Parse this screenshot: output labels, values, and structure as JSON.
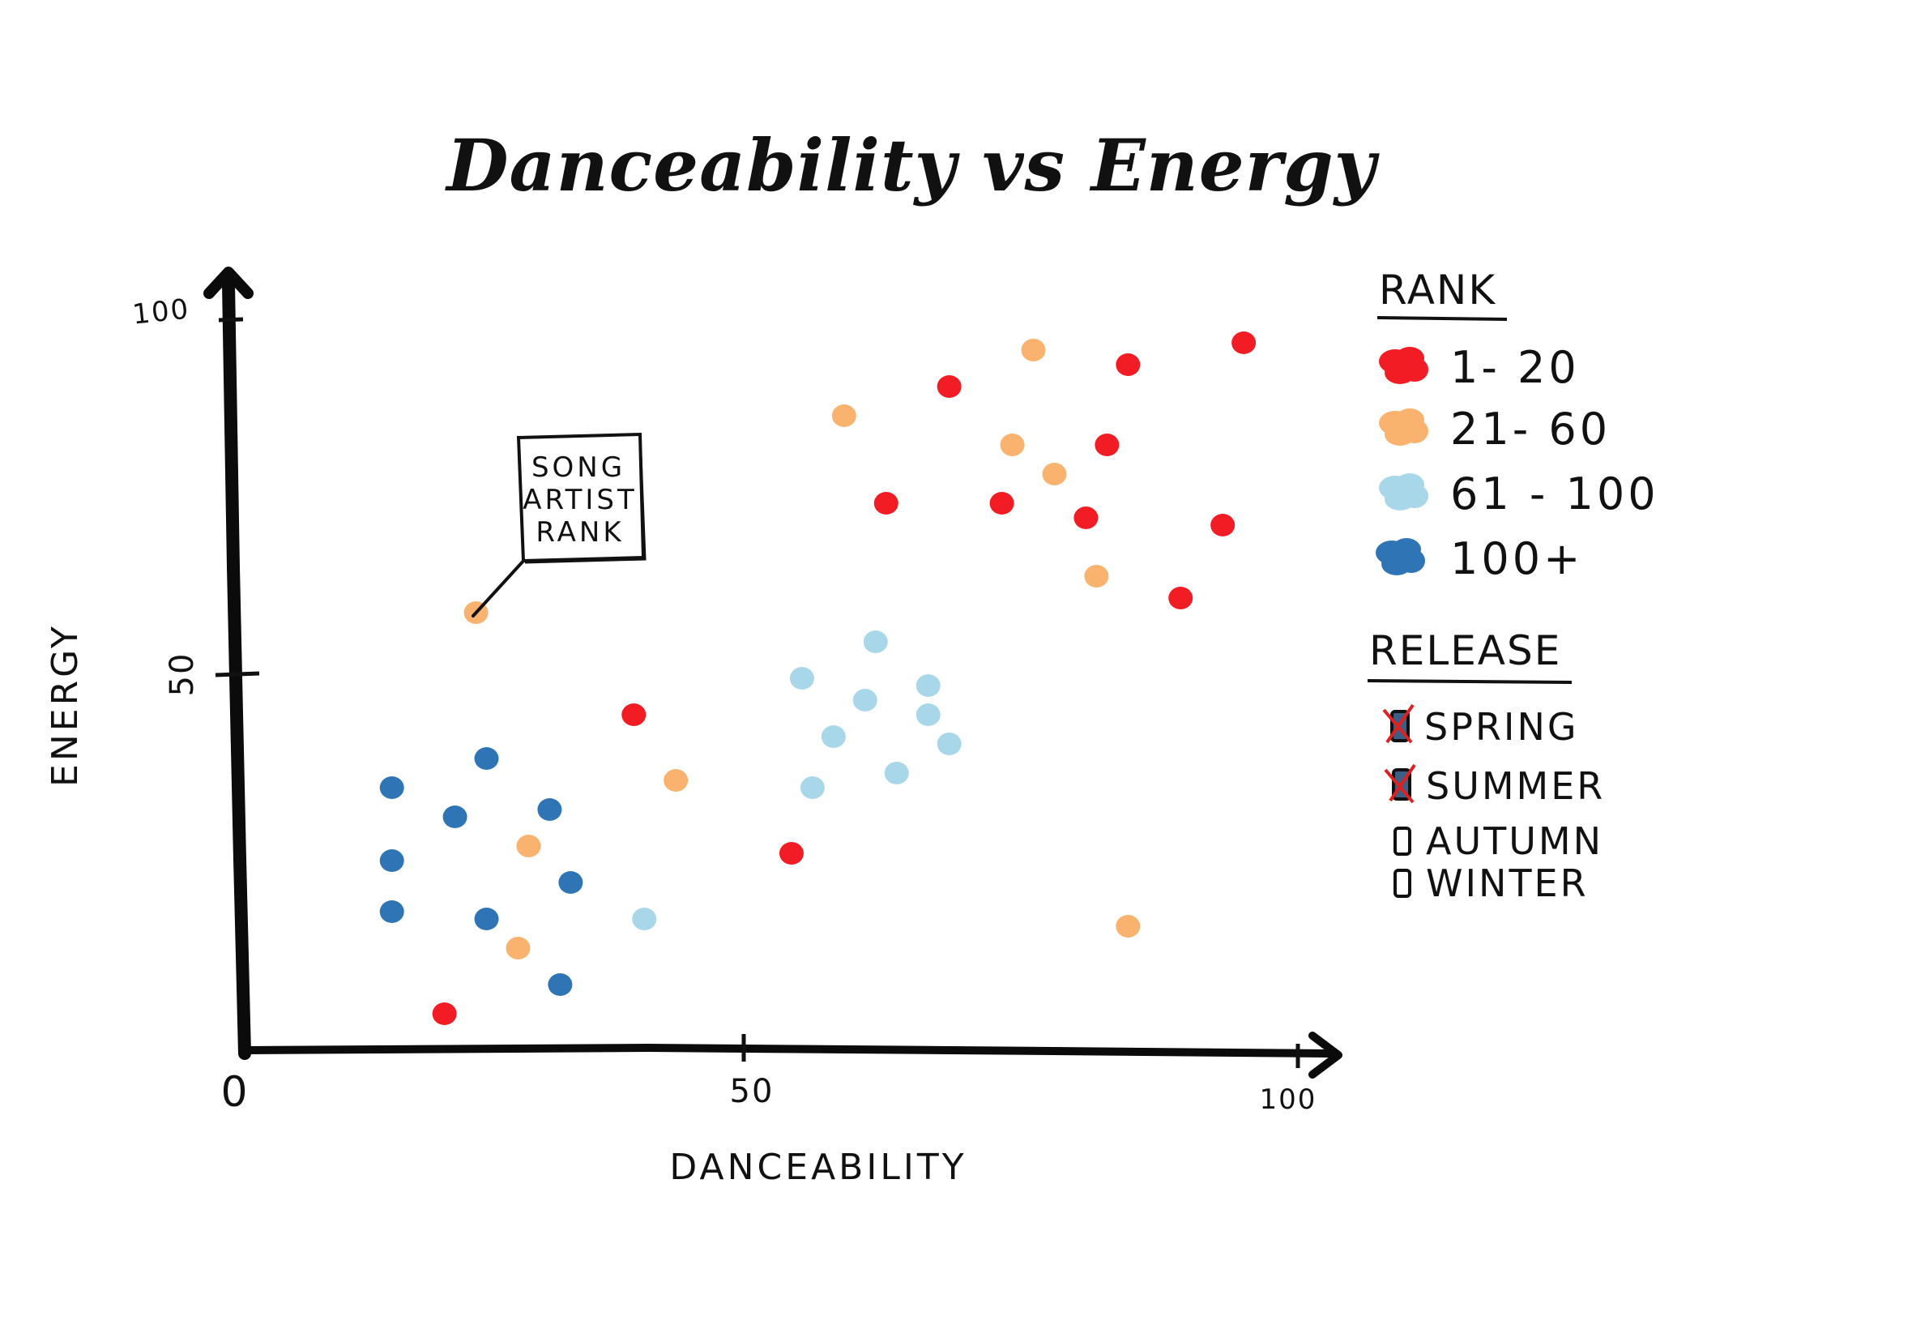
{
  "chart_data": {
    "type": "scatter",
    "title": "Danceability vs Energy",
    "xlabel": "DANCEABILITY",
    "ylabel": "ENERGY",
    "xlim": [
      0,
      100
    ],
    "ylim": [
      0,
      100
    ],
    "xticks": [
      "0",
      "50",
      "100"
    ],
    "yticks": [
      "0",
      "50",
      "100"
    ],
    "grid": false,
    "legend_placement": "right",
    "annotation": {
      "lines": [
        "SONG",
        "ARTIST",
        "RANK"
      ],
      "target_point": {
        "x": 22,
        "y": 60
      }
    },
    "legend_rank": {
      "heading": "RANK",
      "items": [
        {
          "label": "1- 20",
          "color": "#f21d24"
        },
        {
          "label": "21- 60",
          "color": "#f9b36e"
        },
        {
          "label": "61 - 100",
          "color": "#a9d7ea"
        },
        {
          "label": "100+",
          "color": "#2f75b6"
        }
      ]
    },
    "legend_release": {
      "heading": "RELEASE",
      "items": [
        {
          "label": "SPRING",
          "checked": true
        },
        {
          "label": "SUMMER",
          "checked": true
        },
        {
          "label": "AUTUMN",
          "checked": false
        },
        {
          "label": "WINTER",
          "checked": false
        }
      ]
    },
    "series": [
      {
        "name": "1- 20",
        "color": "#f21d24",
        "points": [
          {
            "x": 95,
            "y": 97
          },
          {
            "x": 84,
            "y": 94
          },
          {
            "x": 67,
            "y": 91
          },
          {
            "x": 82,
            "y": 83
          },
          {
            "x": 61,
            "y": 75
          },
          {
            "x": 72,
            "y": 75
          },
          {
            "x": 80,
            "y": 73
          },
          {
            "x": 93,
            "y": 72
          },
          {
            "x": 89,
            "y": 62
          },
          {
            "x": 37,
            "y": 46
          },
          {
            "x": 52,
            "y": 27
          },
          {
            "x": 19,
            "y": 5
          }
        ]
      },
      {
        "name": "21- 60",
        "color": "#f9b36e",
        "points": [
          {
            "x": 75,
            "y": 96
          },
          {
            "x": 57,
            "y": 87
          },
          {
            "x": 73,
            "y": 83
          },
          {
            "x": 77,
            "y": 79
          },
          {
            "x": 81,
            "y": 65
          },
          {
            "x": 22,
            "y": 60
          },
          {
            "x": 41,
            "y": 37
          },
          {
            "x": 27,
            "y": 28
          },
          {
            "x": 26,
            "y": 14
          },
          {
            "x": 84,
            "y": 17
          }
        ]
      },
      {
        "name": "61 - 100",
        "color": "#a9d7ea",
        "points": [
          {
            "x": 60,
            "y": 56
          },
          {
            "x": 53,
            "y": 51
          },
          {
            "x": 65,
            "y": 50
          },
          {
            "x": 59,
            "y": 48
          },
          {
            "x": 65,
            "y": 46
          },
          {
            "x": 56,
            "y": 43
          },
          {
            "x": 67,
            "y": 42
          },
          {
            "x": 62,
            "y": 38
          },
          {
            "x": 54,
            "y": 36
          },
          {
            "x": 38,
            "y": 18
          }
        ]
      },
      {
        "name": "100+",
        "color": "#2f75b6",
        "points": [
          {
            "x": 23,
            "y": 40
          },
          {
            "x": 14,
            "y": 36
          },
          {
            "x": 29,
            "y": 33
          },
          {
            "x": 20,
            "y": 32
          },
          {
            "x": 14,
            "y": 26
          },
          {
            "x": 31,
            "y": 23
          },
          {
            "x": 14,
            "y": 19
          },
          {
            "x": 23,
            "y": 18
          },
          {
            "x": 30,
            "y": 9
          }
        ]
      }
    ]
  }
}
